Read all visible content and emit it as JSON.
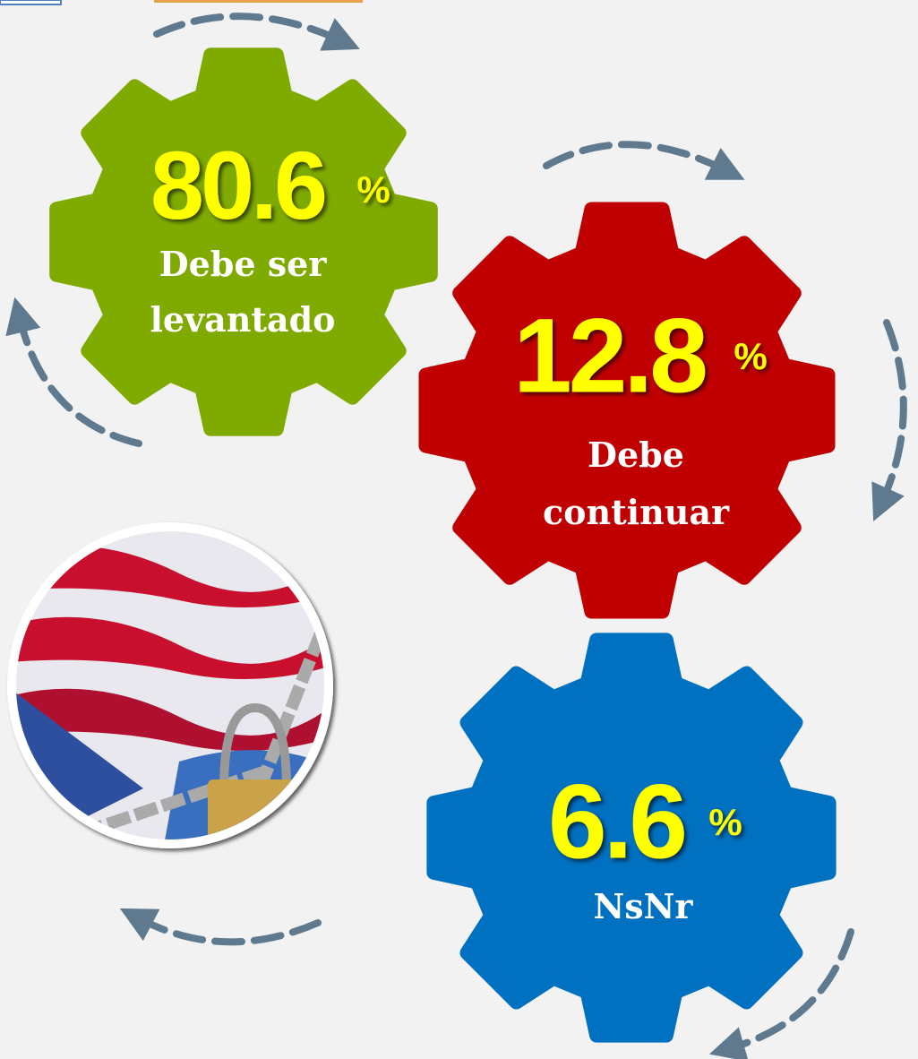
{
  "items": [
    {
      "value": 80.6,
      "unit": "%",
      "label": [
        "Debe ser",
        "levantado"
      ]
    },
    {
      "value": 12.8,
      "unit": "%",
      "label": [
        "Debe",
        "continuar"
      ]
    },
    {
      "value": 6.6,
      "unit": "%",
      "label": [
        "NsNr"
      ]
    }
  ]
}
